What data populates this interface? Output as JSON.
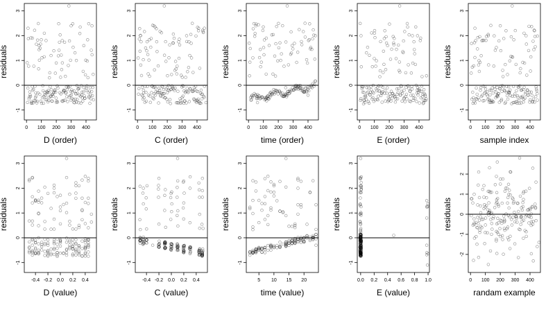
{
  "chart_data": [
    {
      "type": "scatter",
      "id": "p1",
      "xlabel": "D (order)",
      "ylabel": "residuals",
      "xlim": [
        -15,
        470
      ],
      "ylim": [
        -1.4,
        3.3
      ],
      "xticks": [
        0,
        100,
        200,
        300,
        400
      ],
      "yticks": [
        -1,
        0,
        1,
        2,
        3
      ],
      "pattern": "order",
      "seed": 11,
      "n": 180,
      "ref_line": 0,
      "points": [
        [
          10,
          2.3
        ],
        [
          40,
          1.9
        ],
        [
          85,
          1.6
        ],
        [
          120,
          2.1
        ],
        [
          165,
          1.2
        ],
        [
          200,
          0.9
        ],
        [
          240,
          1.8
        ],
        [
          285,
          3.2
        ],
        [
          300,
          2.4
        ],
        [
          335,
          1.0
        ],
        [
          385,
          1.6
        ],
        [
          440,
          2.4
        ],
        [
          60,
          -0.5
        ],
        [
          150,
          -0.3
        ],
        [
          250,
          -0.2
        ],
        [
          300,
          -0.6
        ],
        [
          420,
          -0.5
        ]
      ]
    },
    {
      "type": "scatter",
      "id": "p2",
      "xlabel": "C (order)",
      "ylabel": "residuals",
      "xlim": [
        -15,
        470
      ],
      "ylim": [
        -1.4,
        3.3
      ],
      "xticks": [
        0,
        100,
        200,
        300,
        400
      ],
      "yticks": [
        -1,
        0,
        1,
        2,
        3
      ],
      "pattern": "order",
      "seed": 23,
      "n": 180,
      "ref_line": 0,
      "points": [
        [
          20,
          2.0
        ],
        [
          110,
          2.4
        ],
        [
          180,
          3.2
        ],
        [
          240,
          1.7
        ],
        [
          330,
          2.0
        ],
        [
          410,
          2.2
        ],
        [
          450,
          2.3
        ],
        [
          40,
          -0.2
        ],
        [
          120,
          -0.4
        ],
        [
          200,
          -0.3
        ],
        [
          300,
          -0.5
        ],
        [
          400,
          -0.6
        ],
        [
          460,
          -0.7
        ]
      ]
    },
    {
      "type": "scatter",
      "id": "p3",
      "xlabel": "time (order)",
      "ylabel": "residuals",
      "xlim": [
        -15,
        470
      ],
      "ylim": [
        -1.4,
        3.3
      ],
      "xticks": [
        0,
        100,
        200,
        300,
        400
      ],
      "yticks": [
        -1,
        0,
        1,
        2,
        3
      ],
      "pattern": "wave",
      "seed": 37,
      "n": 180,
      "ref_line": 0,
      "points": [
        [
          50,
          2.4
        ],
        [
          120,
          1.9
        ],
        [
          260,
          3.2
        ],
        [
          380,
          2.5
        ],
        [
          450,
          2.0
        ],
        [
          60,
          -0.7
        ],
        [
          120,
          -0.5
        ],
        [
          180,
          -0.3
        ],
        [
          250,
          -0.1
        ],
        [
          320,
          0.0
        ],
        [
          400,
          -0.4
        ]
      ]
    },
    {
      "type": "scatter",
      "id": "p4",
      "xlabel": "E (order)",
      "ylabel": "residuals",
      "xlim": [
        -15,
        470
      ],
      "ylim": [
        -1.4,
        3.3
      ],
      "xticks": [
        0,
        100,
        200,
        300,
        400
      ],
      "yticks": [
        -1,
        0,
        1,
        2,
        3
      ],
      "pattern": "order",
      "seed": 41,
      "n": 180,
      "ref_line": 0,
      "points": [
        [
          10,
          2.0
        ],
        [
          100,
          2.1
        ],
        [
          170,
          2.2
        ],
        [
          270,
          3.2
        ],
        [
          390,
          2.0
        ],
        [
          30,
          -0.6
        ],
        [
          90,
          -0.5
        ],
        [
          150,
          -0.3
        ],
        [
          230,
          -0.4
        ],
        [
          300,
          -0.2
        ],
        [
          360,
          -0.4
        ],
        [
          430,
          -0.6
        ]
      ]
    },
    {
      "type": "scatter",
      "id": "p5",
      "xlabel": "sample index",
      "ylabel": "residuals",
      "xlim": [
        -15,
        470
      ],
      "ylim": [
        -1.4,
        3.3
      ],
      "xticks": [
        0,
        100,
        200,
        300,
        400
      ],
      "yticks": [
        -1,
        0,
        1,
        2,
        3
      ],
      "pattern": "order",
      "seed": 53,
      "n": 180,
      "ref_line": 0,
      "points": [
        [
          30,
          2.3
        ],
        [
          120,
          2.0
        ],
        [
          200,
          2.4
        ],
        [
          280,
          3.2
        ],
        [
          360,
          2.1
        ],
        [
          430,
          2.2
        ],
        [
          60,
          -0.6
        ],
        [
          130,
          -0.2
        ],
        [
          180,
          -0.4
        ],
        [
          260,
          -0.3
        ],
        [
          340,
          -0.2
        ],
        [
          450,
          -0.6
        ]
      ]
    },
    {
      "type": "scatter",
      "id": "p6",
      "xlabel": "D (value)",
      "ylabel": "residuals",
      "xlim": [
        -0.58,
        0.58
      ],
      "ylim": [
        -1.4,
        3.3
      ],
      "xticks": [
        -0.4,
        -0.2,
        0.0,
        0.2,
        0.4
      ],
      "yticks": [
        -1,
        0,
        1,
        2,
        3
      ],
      "pattern": "value",
      "seed": 67,
      "n": 180,
      "ref_line": 0,
      "points": [
        [
          -0.5,
          2.3
        ],
        [
          -0.1,
          2.0
        ],
        [
          0.1,
          3.2
        ],
        [
          0.3,
          2.1
        ],
        [
          0.45,
          2.4
        ],
        [
          -0.4,
          -0.6
        ],
        [
          -0.2,
          -0.3
        ],
        [
          0.0,
          -0.2
        ],
        [
          0.1,
          -0.6
        ],
        [
          0.3,
          -0.4
        ]
      ]
    },
    {
      "type": "scatter",
      "id": "p7",
      "xlabel": "C (value)",
      "ylabel": "residuals",
      "xlim": [
        -0.58,
        0.58
      ],
      "ylim": [
        -1.4,
        3.3
      ],
      "xticks": [
        -0.4,
        -0.2,
        0.0,
        0.2,
        0.4
      ],
      "yticks": [
        -1,
        0,
        1,
        2,
        3
      ],
      "pattern": "stripes",
      "seed": 71,
      "n": 180,
      "ref_line": 0,
      "points": [
        [
          -0.45,
          2.0
        ],
        [
          -0.2,
          2.4
        ],
        [
          0.1,
          3.2
        ],
        [
          0.3,
          2.0
        ],
        [
          0.5,
          2.4
        ],
        [
          -0.5,
          -0.1
        ],
        [
          -0.3,
          -0.3
        ],
        [
          0.0,
          -0.5
        ],
        [
          0.2,
          -0.6
        ],
        [
          0.5,
          -0.7
        ]
      ]
    },
    {
      "type": "scatter",
      "id": "p8",
      "xlabel": "time (value)",
      "ylabel": "residuals",
      "xlim": [
        0.8,
        24.8
      ],
      "ylim": [
        -1.4,
        3.3
      ],
      "xticks": [
        5,
        10,
        15,
        20
      ],
      "yticks": [
        -1,
        0,
        1,
        2,
        3
      ],
      "pattern": "timewave",
      "seed": 83,
      "n": 180,
      "ref_line": 0,
      "points": [
        [
          3,
          2.3
        ],
        [
          8,
          1.9
        ],
        [
          14,
          3.2
        ],
        [
          18,
          2.0
        ],
        [
          23,
          2.3
        ],
        [
          3,
          -0.6
        ],
        [
          7,
          -0.6
        ],
        [
          11,
          -0.4
        ],
        [
          16,
          -0.1
        ],
        [
          20,
          0.0
        ],
        [
          24,
          -0.3
        ]
      ]
    },
    {
      "type": "scatter",
      "id": "p9",
      "xlabel": "E (value)",
      "ylabel": "residuals",
      "xlim": [
        -0.05,
        1.02
      ],
      "ylim": [
        -1.4,
        3.3
      ],
      "xticks": [
        0.0,
        0.2,
        0.4,
        0.6,
        0.8,
        1.0
      ],
      "yticks": [
        -1,
        0,
        1,
        2,
        3
      ],
      "pattern": "spike",
      "seed": 97,
      "n": 170,
      "ref_line": 0,
      "points": [
        [
          0.0,
          3.2
        ],
        [
          0.0,
          2.4
        ],
        [
          0.0,
          -0.7
        ],
        [
          0.49,
          0.1
        ],
        [
          0.98,
          1.5
        ],
        [
          0.98,
          0.8
        ],
        [
          0.98,
          -0.3
        ],
        [
          0.99,
          -1.1
        ]
      ]
    },
    {
      "type": "scatter",
      "id": "p10",
      "xlabel": "randam example",
      "ylabel": "residuals",
      "xlim": [
        -15,
        470
      ],
      "ylim": [
        -2.9,
        2.9
      ],
      "xticks": [
        0,
        100,
        200,
        300,
        400
      ],
      "yticks": [
        -2,
        -1,
        0,
        1,
        2
      ],
      "pattern": "random",
      "seed": 101,
      "n": 190,
      "ref_line": 0,
      "points": [
        [
          20,
          -2.3
        ],
        [
          120,
          -2.5
        ],
        [
          180,
          2.6
        ],
        [
          270,
          2.1
        ],
        [
          330,
          2.8
        ],
        [
          440,
          1.6
        ],
        [
          460,
          -1.4
        ]
      ]
    }
  ]
}
